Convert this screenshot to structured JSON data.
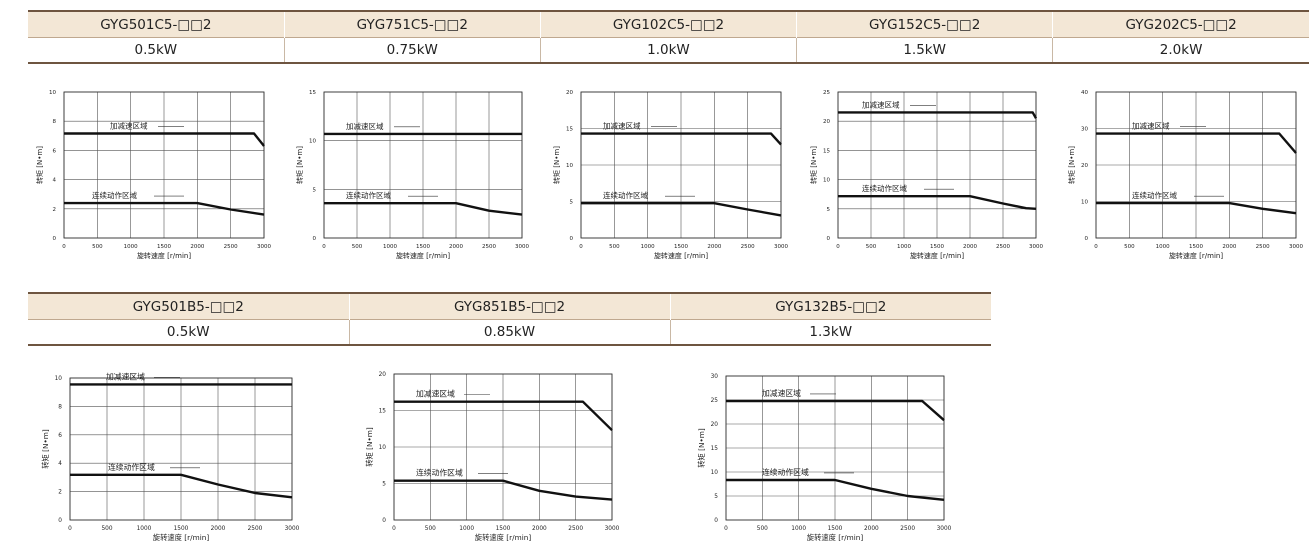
{
  "header": {
    "row1": {
      "models": [
        "GYG501C5-□□2",
        "GYG751C5-□□2",
        "GYG102C5-□□2",
        "GYG152C5-□□2",
        "GYG202C5-□□2"
      ],
      "powers": [
        "0.5kW",
        "0.75kW",
        "1.0kW",
        "1.5kW",
        "2.0kW"
      ]
    },
    "row2": {
      "models": [
        "GYG501B5-□□2",
        "GYG851B5-□□2",
        "GYG132B5-□□2"
      ],
      "powers": [
        "0.5kW",
        "0.85kW",
        "1.3kW"
      ]
    }
  },
  "chart_data": [
    {
      "type": "line",
      "xlabel": "旋转速度 [r/min]",
      "ylabel": "转矩 [N•m]",
      "xlim": [
        0,
        3000
      ],
      "xticks": [
        0,
        500,
        1000,
        1500,
        2000,
        2500,
        3000
      ],
      "ylim": [
        0,
        10
      ],
      "yticks": [
        0,
        2,
        4,
        6,
        8,
        10
      ],
      "grid": true,
      "series": [
        {
          "name": "加减速区域",
          "x": [
            0,
            2850,
            3000
          ],
          "y": [
            7.16,
            7.16,
            6.3
          ]
        },
        {
          "name": "连续动作区域",
          "x": [
            0,
            2000,
            2500,
            3000
          ],
          "y": [
            2.39,
            2.39,
            1.95,
            1.6
          ]
        }
      ]
    },
    {
      "type": "line",
      "xlabel": "旋转速度 [r/min]",
      "ylabel": "转矩 [N•m]",
      "xlim": [
        0,
        3000
      ],
      "xticks": [
        0,
        500,
        1000,
        1500,
        2000,
        2500,
        3000
      ],
      "ylim": [
        0,
        15
      ],
      "yticks": [
        0,
        5,
        10,
        15
      ],
      "grid": true,
      "series": [
        {
          "name": "加减速区域",
          "x": [
            0,
            3000
          ],
          "y": [
            10.7,
            10.7
          ]
        },
        {
          "name": "连续动作区域",
          "x": [
            0,
            2000,
            2500,
            3000
          ],
          "y": [
            3.58,
            3.58,
            2.8,
            2.4
          ]
        }
      ]
    },
    {
      "type": "line",
      "xlabel": "旋转速度 [r/min]",
      "ylabel": "转矩 [N•m]",
      "xlim": [
        0,
        3000
      ],
      "xticks": [
        0,
        500,
        1000,
        1500,
        2000,
        2500,
        3000
      ],
      "ylim": [
        0,
        20
      ],
      "yticks": [
        0,
        5,
        10,
        15,
        20
      ],
      "grid": true,
      "series": [
        {
          "name": "加减速区域",
          "x": [
            0,
            2850,
            3000
          ],
          "y": [
            14.3,
            14.3,
            12.8
          ]
        },
        {
          "name": "连续动作区域",
          "x": [
            0,
            2000,
            2500,
            3000
          ],
          "y": [
            4.77,
            4.77,
            3.9,
            3.1
          ]
        }
      ]
    },
    {
      "type": "line",
      "xlabel": "旋转速度 [r/min]",
      "ylabel": "转矩 [N•m]",
      "xlim": [
        0,
        3000
      ],
      "xticks": [
        0,
        500,
        1000,
        1500,
        2000,
        2500,
        3000
      ],
      "ylim": [
        0,
        25
      ],
      "yticks": [
        0,
        5,
        10,
        15,
        20,
        25
      ],
      "grid": true,
      "series": [
        {
          "name": "加减速区域",
          "x": [
            0,
            2950,
            3000
          ],
          "y": [
            21.5,
            21.5,
            20.5
          ]
        },
        {
          "name": "连续动作区域",
          "x": [
            0,
            2000,
            2500,
            2850,
            3000
          ],
          "y": [
            7.16,
            7.16,
            5.9,
            5.1,
            5.0
          ]
        }
      ]
    },
    {
      "type": "line",
      "xlabel": "旋转速度 [r/min]",
      "ylabel": "转矩 [N•m]",
      "xlim": [
        0,
        3000
      ],
      "xticks": [
        0,
        500,
        1000,
        1500,
        2000,
        2500,
        3000
      ],
      "ylim": [
        0,
        40
      ],
      "yticks": [
        0,
        10,
        20,
        30,
        40
      ],
      "grid": true,
      "series": [
        {
          "name": "加减速区域",
          "x": [
            0,
            2750,
            3000
          ],
          "y": [
            28.6,
            28.6,
            23.3
          ]
        },
        {
          "name": "连续动作区域",
          "x": [
            0,
            2000,
            2500,
            3000
          ],
          "y": [
            9.55,
            9.55,
            8.0,
            6.8
          ]
        }
      ]
    },
    {
      "type": "line",
      "xlabel": "旋转速度 [r/min]",
      "ylabel": "转矩 [N•m]",
      "xlim": [
        0,
        3000
      ],
      "xticks": [
        0,
        500,
        1000,
        1500,
        2000,
        2500,
        3000
      ],
      "ylim": [
        0,
        10
      ],
      "yticks": [
        0,
        2,
        4,
        6,
        8,
        10
      ],
      "grid": true,
      "series": [
        {
          "name": "加减速区域",
          "x": [
            0,
            3000
          ],
          "y": [
            9.55,
            9.55
          ]
        },
        {
          "name": "连续动作区域",
          "x": [
            0,
            1500,
            2000,
            2500,
            3000
          ],
          "y": [
            3.18,
            3.18,
            2.5,
            1.9,
            1.6
          ]
        }
      ]
    },
    {
      "type": "line",
      "xlabel": "旋转速度 [r/min]",
      "ylabel": "转矩 [N•m]",
      "xlim": [
        0,
        3000
      ],
      "xticks": [
        0,
        500,
        1000,
        1500,
        2000,
        2500,
        3000
      ],
      "ylim": [
        0,
        20
      ],
      "yticks": [
        0,
        5,
        10,
        15,
        20
      ],
      "grid": true,
      "series": [
        {
          "name": "加减速区域",
          "x": [
            0,
            2600,
            3000
          ],
          "y": [
            16.2,
            16.2,
            12.3
          ]
        },
        {
          "name": "连续动作区域",
          "x": [
            0,
            1500,
            2000,
            2500,
            3000
          ],
          "y": [
            5.39,
            5.39,
            4.0,
            3.2,
            2.8
          ]
        }
      ]
    },
    {
      "type": "line",
      "xlabel": "旋转速度 [r/min]",
      "ylabel": "转矩 [N•m]",
      "xlim": [
        0,
        3000
      ],
      "xticks": [
        0,
        500,
        1000,
        1500,
        2000,
        2500,
        3000
      ],
      "ylim": [
        0,
        30
      ],
      "yticks": [
        0,
        5,
        10,
        15,
        20,
        25,
        30
      ],
      "grid": true,
      "series": [
        {
          "name": "加减速区域",
          "x": [
            0,
            2700,
            3000
          ],
          "y": [
            24.8,
            24.8,
            20.8
          ]
        },
        {
          "name": "连续动作区域",
          "x": [
            0,
            1500,
            2000,
            2500,
            3000
          ],
          "y": [
            8.34,
            8.34,
            6.5,
            5.0,
            4.2
          ]
        }
      ]
    }
  ]
}
